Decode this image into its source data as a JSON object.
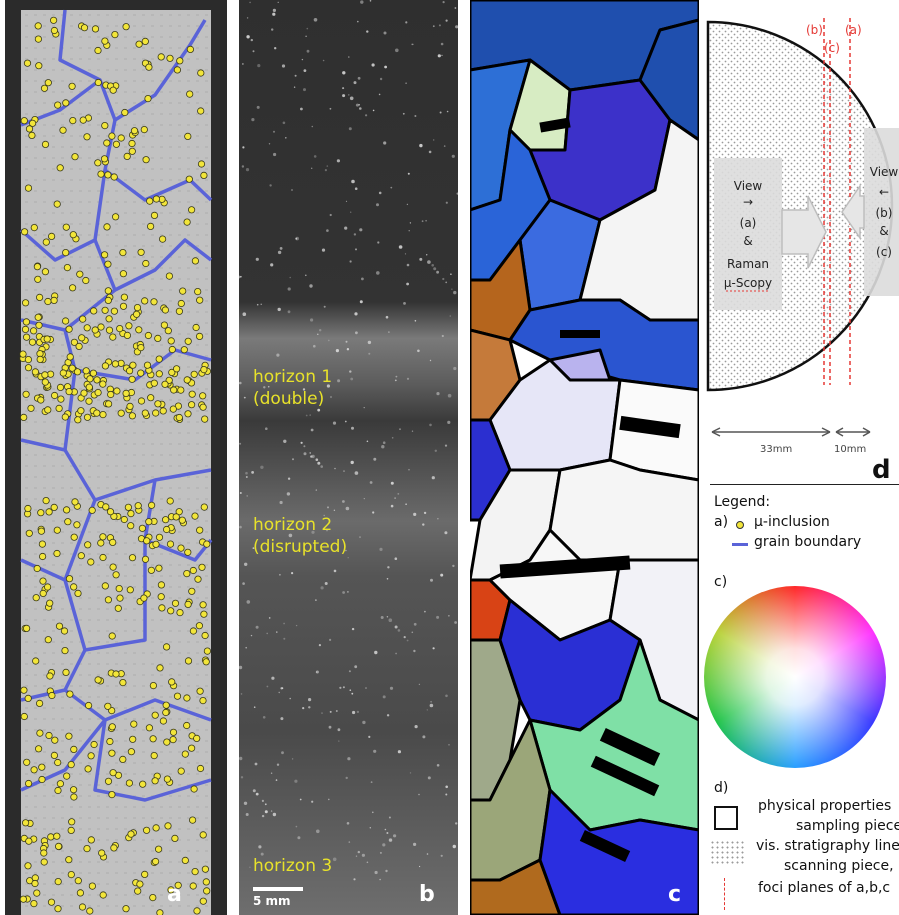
{
  "panel_a": {
    "label": "a"
  },
  "panel_b": {
    "label": "b",
    "scale_bar": "5 mm",
    "horizons": [
      {
        "line1": "horizon 1",
        "line2": "(double)"
      },
      {
        "line1": "horizon 2",
        "line2": "(disrupted)"
      },
      {
        "line1": "horizon 3",
        "line2": ""
      }
    ]
  },
  "panel_c": {
    "label": "c"
  },
  "panel_d": {
    "label": "d",
    "plane_labels": {
      "b": "(b)",
      "c": "(c)",
      "a": "(a)"
    },
    "view_left": [
      "View",
      "→",
      "(a)",
      "&",
      "Raman",
      "µ-Scopy"
    ],
    "view_right": [
      "View",
      "←",
      "(b)",
      "&",
      "(c)"
    ],
    "dim_left": "33mm",
    "dim_right": "10mm"
  },
  "legend": {
    "title": "Legend:",
    "a_prefix": "a)",
    "inclusion": "µ-inclusion",
    "grain_boundary": "grain boundary",
    "c_prefix": "c)",
    "d_prefix": "d)",
    "physical_line1": "physical properties",
    "physical_line2": "sampling piece",
    "strat_line1": "vis. stratigraphy line",
    "strat_line2": "scanning piece, b",
    "foci": "foci planes of a,b,c"
  },
  "colors": {
    "inclusion": "#f2e53a",
    "grain_boundary": "#5a63d8",
    "horizon_text": "#e8e22a",
    "plane_line": "#e53935"
  }
}
